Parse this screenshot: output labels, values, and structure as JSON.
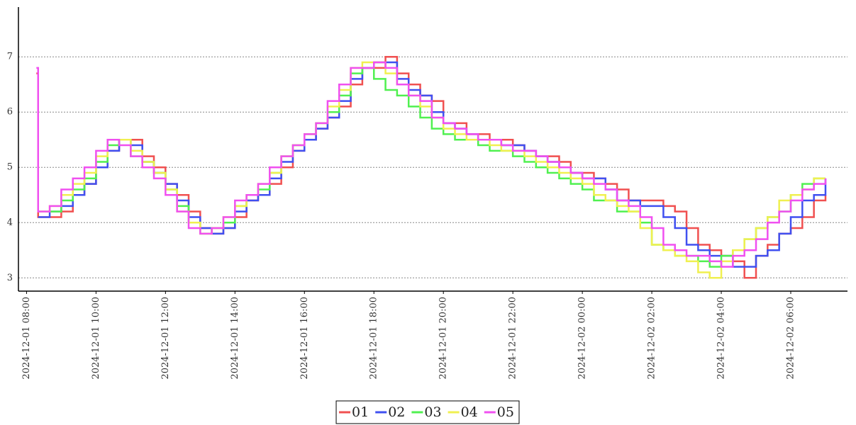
{
  "chart_data": {
    "type": "line",
    "step": true,
    "x": [
      "2024-12-01 08:17",
      "2024-12-01 08:20",
      "2024-12-01 08:40",
      "2024-12-01 09:00",
      "2024-12-01 09:20",
      "2024-12-01 09:40",
      "2024-12-01 10:00",
      "2024-12-01 10:20",
      "2024-12-01 10:40",
      "2024-12-01 11:00",
      "2024-12-01 11:20",
      "2024-12-01 11:40",
      "2024-12-01 12:00",
      "2024-12-01 12:20",
      "2024-12-01 12:40",
      "2024-12-01 13:00",
      "2024-12-01 13:20",
      "2024-12-01 13:40",
      "2024-12-01 14:00",
      "2024-12-01 14:20",
      "2024-12-01 14:40",
      "2024-12-01 15:00",
      "2024-12-01 15:20",
      "2024-12-01 15:40",
      "2024-12-01 16:00",
      "2024-12-01 16:20",
      "2024-12-01 16:40",
      "2024-12-01 17:00",
      "2024-12-01 17:20",
      "2024-12-01 17:40",
      "2024-12-01 18:00",
      "2024-12-01 18:20",
      "2024-12-01 18:40",
      "2024-12-01 19:00",
      "2024-12-01 19:20",
      "2024-12-01 19:40",
      "2024-12-01 20:00",
      "2024-12-01 20:20",
      "2024-12-01 20:40",
      "2024-12-01 21:00",
      "2024-12-01 21:20",
      "2024-12-01 21:40",
      "2024-12-01 22:00",
      "2024-12-01 22:20",
      "2024-12-01 22:40",
      "2024-12-01 23:00",
      "2024-12-01 23:20",
      "2024-12-01 23:40",
      "2024-12-02 00:00",
      "2024-12-02 00:20",
      "2024-12-02 00:40",
      "2024-12-02 01:00",
      "2024-12-02 01:20",
      "2024-12-02 01:40",
      "2024-12-02 02:00",
      "2024-12-02 02:20",
      "2024-12-02 02:40",
      "2024-12-02 03:00",
      "2024-12-02 03:20",
      "2024-12-02 03:40",
      "2024-12-02 04:00",
      "2024-12-02 04:20",
      "2024-12-02 04:40",
      "2024-12-02 05:00",
      "2024-12-02 05:20",
      "2024-12-02 05:40",
      "2024-12-02 06:00",
      "2024-12-02 06:20",
      "2024-12-02 06:40",
      "2024-12-02 07:00"
    ],
    "series": [
      {
        "name": "01",
        "color": "#f05050",
        "values": [
          6.7,
          4.1,
          4.1,
          4.2,
          4.5,
          4.7,
          5.0,
          5.3,
          5.5,
          5.5,
          5.2,
          5.0,
          4.7,
          4.5,
          4.2,
          3.9,
          3.8,
          3.9,
          4.1,
          4.4,
          4.5,
          4.7,
          5.0,
          5.3,
          5.5,
          5.7,
          5.9,
          6.1,
          6.5,
          6.8,
          6.8,
          7.0,
          6.7,
          6.5,
          6.3,
          6.2,
          5.8,
          5.8,
          5.6,
          5.6,
          5.5,
          5.5,
          5.4,
          5.3,
          5.2,
          5.2,
          5.1,
          4.9,
          4.9,
          4.8,
          4.7,
          4.6,
          4.4,
          4.4,
          4.4,
          4.3,
          4.2,
          3.9,
          3.6,
          3.5,
          3.4,
          3.3,
          3.0,
          3.4,
          3.6,
          3.8,
          3.9,
          4.1,
          4.4,
          4.5
        ]
      },
      {
        "name": "02",
        "color": "#4050f0",
        "values": [
          null,
          4.1,
          4.2,
          4.3,
          4.5,
          4.7,
          5.0,
          5.3,
          5.5,
          5.4,
          5.1,
          4.9,
          4.7,
          4.4,
          4.1,
          3.9,
          3.8,
          3.9,
          4.2,
          4.4,
          4.5,
          4.8,
          5.1,
          5.3,
          5.5,
          5.7,
          5.9,
          6.2,
          6.6,
          6.8,
          6.9,
          6.9,
          6.6,
          6.4,
          6.3,
          6.0,
          5.8,
          5.7,
          5.6,
          5.5,
          5.5,
          5.4,
          5.4,
          5.3,
          5.2,
          5.1,
          5.0,
          4.9,
          4.8,
          4.8,
          4.6,
          4.4,
          4.4,
          4.3,
          4.3,
          4.1,
          3.9,
          3.6,
          3.5,
          3.4,
          3.4,
          3.2,
          3.2,
          3.4,
          3.5,
          3.8,
          4.1,
          4.4,
          4.5,
          4.8
        ]
      },
      {
        "name": "03",
        "color": "#50f050",
        "values": [
          null,
          4.2,
          4.2,
          4.4,
          4.6,
          4.8,
          5.1,
          5.4,
          5.5,
          5.2,
          5.1,
          4.9,
          4.6,
          4.3,
          4.0,
          3.8,
          3.9,
          4.0,
          4.3,
          4.5,
          4.6,
          4.9,
          5.2,
          5.4,
          5.6,
          5.8,
          6.0,
          6.3,
          6.7,
          6.8,
          6.6,
          6.4,
          6.3,
          6.1,
          5.9,
          5.7,
          5.6,
          5.5,
          5.5,
          5.4,
          5.3,
          5.3,
          5.2,
          5.1,
          5.0,
          4.9,
          4.8,
          4.7,
          4.6,
          4.4,
          4.4,
          4.2,
          4.2,
          4.0,
          3.6,
          3.5,
          3.4,
          3.4,
          3.3,
          3.2,
          3.4,
          3.5,
          3.7,
          3.9,
          4.1,
          4.2,
          4.5,
          4.7,
          4.8,
          4.8
        ]
      },
      {
        "name": "04",
        "color": "#f0f050",
        "values": [
          null,
          4.2,
          4.3,
          4.5,
          4.7,
          4.9,
          5.2,
          5.5,
          5.5,
          5.3,
          5.1,
          4.9,
          4.6,
          4.2,
          4.0,
          3.8,
          3.9,
          4.1,
          4.3,
          4.5,
          4.7,
          4.9,
          5.2,
          5.4,
          5.6,
          5.8,
          6.1,
          6.4,
          6.8,
          6.9,
          6.9,
          6.7,
          6.5,
          6.3,
          6.1,
          5.9,
          5.7,
          5.6,
          5.5,
          5.5,
          5.4,
          5.3,
          5.3,
          5.2,
          5.1,
          5.0,
          4.9,
          4.8,
          4.7,
          4.5,
          4.4,
          4.3,
          4.2,
          3.9,
          3.6,
          3.5,
          3.4,
          3.3,
          3.1,
          3.0,
          3.3,
          3.5,
          3.7,
          3.9,
          4.1,
          4.4,
          4.5,
          4.6,
          4.8,
          4.8
        ]
      },
      {
        "name": "05",
        "color": "#f050f0",
        "values": [
          6.8,
          4.2,
          4.3,
          4.6,
          4.8,
          5.0,
          5.3,
          5.5,
          5.4,
          5.2,
          5.0,
          4.8,
          4.5,
          4.2,
          3.9,
          3.8,
          3.9,
          4.1,
          4.4,
          4.5,
          4.7,
          5.0,
          5.2,
          5.4,
          5.6,
          5.8,
          6.2,
          6.5,
          6.8,
          6.8,
          6.9,
          6.8,
          6.5,
          6.3,
          6.2,
          5.9,
          5.8,
          5.7,
          5.6,
          5.5,
          5.5,
          5.4,
          5.3,
          5.3,
          5.2,
          5.1,
          5.0,
          4.9,
          4.8,
          4.7,
          4.6,
          4.4,
          4.3,
          4.1,
          3.9,
          3.6,
          3.5,
          3.4,
          3.4,
          3.3,
          3.2,
          3.4,
          3.5,
          3.7,
          4.0,
          4.2,
          4.4,
          4.6,
          4.7,
          4.8
        ]
      }
    ],
    "xlim": [
      "2024-12-01 07:46",
      "2024-12-02 07:38"
    ],
    "xticks": [
      "2024-12-01 08:00",
      "2024-12-01 10:00",
      "2024-12-01 12:00",
      "2024-12-01 14:00",
      "2024-12-01 16:00",
      "2024-12-01 18:00",
      "2024-12-01 20:00",
      "2024-12-01 22:00",
      "2024-12-02 00:00",
      "2024-12-02 02:00",
      "2024-12-02 04:00",
      "2024-12-02 06:00"
    ],
    "ylim": [
      2.76,
      7.9
    ],
    "yticks": [
      3,
      4,
      5,
      6,
      7
    ],
    "grid": true,
    "legend": "bottom"
  }
}
